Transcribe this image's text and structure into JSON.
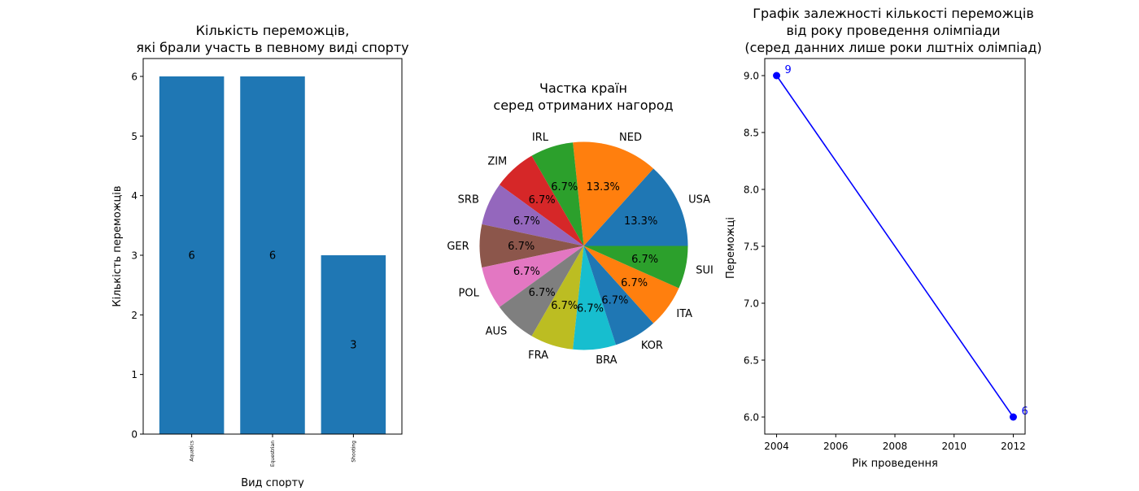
{
  "chart_data": [
    {
      "type": "bar",
      "title": [
        "Кількість переможців,",
        "які брали участь в певному виді спорту"
      ],
      "xlabel": "Вид спорту",
      "ylabel": "Кількість переможців",
      "categories": [
        "Aquatics",
        "Equestrian",
        "Shooting"
      ],
      "values": [
        6,
        6,
        3
      ],
      "ylim": [
        0,
        6.3
      ],
      "yticks": [
        0,
        1,
        2,
        3,
        4,
        5,
        6
      ],
      "color": "#1f77b4"
    },
    {
      "type": "pie",
      "title": [
        "Частка країн",
        "серед отриманих нагород"
      ],
      "labels": [
        "USA",
        "NED",
        "IRL",
        "ZIM",
        "SRB",
        "GER",
        "POL",
        "AUS",
        "FRA",
        "BRA",
        "KOR",
        "ITA",
        "SUI"
      ],
      "values": [
        2,
        2,
        1,
        1,
        1,
        1,
        1,
        1,
        1,
        1,
        1,
        1,
        1
      ],
      "pct_labels": [
        "13.3%",
        "13.3%",
        "6.7%",
        "6.7%",
        "6.7%",
        "6.7%",
        "6.7%",
        "6.7%",
        "6.7%",
        "6.7%",
        "6.7%",
        "6.7%",
        "6.7%"
      ],
      "colors": [
        "#1f77b4",
        "#ff7f0e",
        "#2ca02c",
        "#d62728",
        "#9467bd",
        "#8c564b",
        "#e377c2",
        "#7f7f7f",
        "#bcbd22",
        "#17becf",
        "#1f77b4",
        "#ff7f0e",
        "#2ca02c"
      ]
    },
    {
      "type": "line",
      "title": [
        "Графік залежності кількості переможців",
        "від року проведення олімпіади",
        "(серед данних лише роки лштніх олімпіад)"
      ],
      "xlabel": "Рік проведення",
      "ylabel": "Переможці",
      "x": [
        2004,
        2012
      ],
      "y": [
        9,
        6
      ],
      "point_labels": [
        "9",
        "6"
      ],
      "xlim": [
        2003.6,
        2012.4
      ],
      "ylim": [
        5.85,
        9.15
      ],
      "xticks": [
        2004,
        2006,
        2008,
        2010,
        2012
      ],
      "yticks": [
        "6.0",
        "6.5",
        "7.0",
        "7.5",
        "8.0",
        "8.5",
        "9.0"
      ],
      "color": "#0000ff"
    }
  ]
}
